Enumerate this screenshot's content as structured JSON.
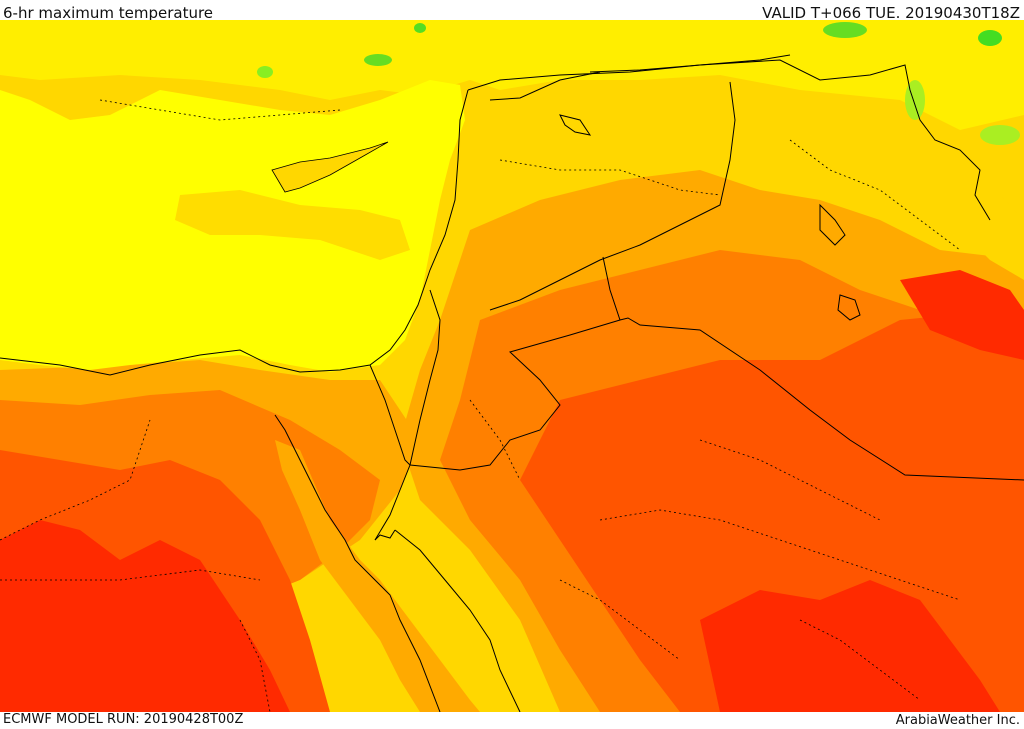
{
  "header": {
    "title": "6-hr maximum temperature",
    "valid": "VALID T+066 TUE. 20190430T18Z"
  },
  "footer": {
    "model_run": "ECMWF MODEL RUN: 20190428T00Z",
    "credit": "ArabiaWeather Inc."
  },
  "palette": {
    "sea_yellow": "#ffff00",
    "light_orange": "#ffd700",
    "orange": "#ffaa00",
    "dark_orange": "#ff8000",
    "red_orange": "#ff5500",
    "red": "#ff2a00",
    "green": "#55ee22"
  }
}
